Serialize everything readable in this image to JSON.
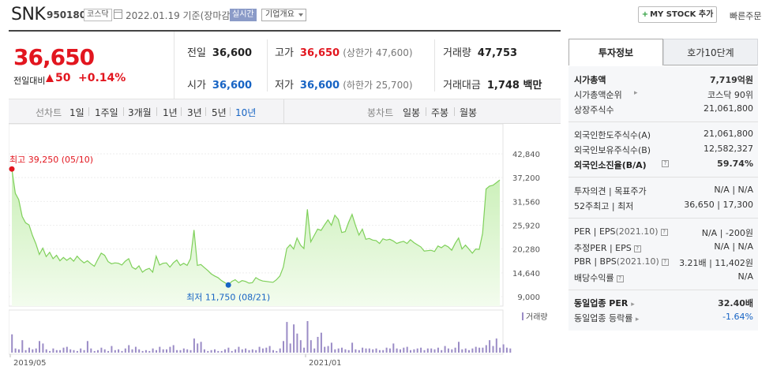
{
  "header": {
    "name": "SNK",
    "code": "950180",
    "market": "코스닥",
    "date": "2022.01.19  기준(장마감)",
    "realtime": "실시간",
    "company_select": "기업개요",
    "mystock_label": "MY STOCK 추가",
    "quick_order": "빠른주문"
  },
  "price": {
    "current": "36,650",
    "change_label": "전일대비",
    "change_amount": "50",
    "change_pct": "+0.14%",
    "colors": {
      "up": "#e2161f",
      "down": "#1764c4"
    }
  },
  "quotes": {
    "prev_label": "전일",
    "prev": "36,600",
    "high_label": "고가",
    "high": "36,650",
    "upper_limit": "(상한가 47,600)",
    "volume_label": "거래량",
    "volume": "47,753",
    "open_label": "시가",
    "open": "36,600",
    "low_label": "저가",
    "low": "36,600",
    "lower_limit": "(하한가 25,700)",
    "amount_label": "거래대금",
    "amount": "1,748 백만"
  },
  "period_bar": {
    "line_label": "선차트",
    "line_periods": [
      "1일",
      "1주일",
      "3개월",
      "1년",
      "3년",
      "5년",
      "10년"
    ],
    "selected_period": "10년",
    "candle_label": "봉차트",
    "candle_periods": [
      "일봉",
      "주봉",
      "월봉"
    ]
  },
  "chart_data": {
    "type": "area",
    "price_axis": [
      42840,
      37200,
      31560,
      25920,
      20280,
      14640,
      9000
    ],
    "price_axis_labels": [
      "42,840",
      "37,200",
      "31,560",
      "25,920",
      "20,280",
      "14,640",
      "9,000"
    ],
    "ylim": [
      9000,
      42840
    ],
    "x_labels": [
      "2019/05",
      "2021/01"
    ],
    "max_label": "최고 39,250 (05/10)",
    "min_label": "최저 11,750 (08/21)",
    "max_value": 39250,
    "min_value": 11750,
    "volume_legend": "거래량",
    "series": [
      {
        "values": [
          39250,
          33500,
          32000,
          28000,
          26500,
          26000,
          23500,
          21500,
          19000,
          20500,
          18500,
          19500,
          18000,
          18800,
          17500,
          18300,
          17600,
          18200,
          17400,
          18600,
          17700,
          17000,
          17500,
          16800,
          16200,
          17800,
          19300,
          18800,
          17300,
          16800,
          17000,
          16900,
          16500,
          17400,
          18000,
          16000,
          15500,
          16300,
          14800,
          15400,
          15700,
          14800,
          18600,
          16500,
          16900,
          17000,
          16000,
          17000,
          17700,
          16400,
          16900,
          16400,
          18000,
          24800,
          16400,
          16600,
          15900,
          15200,
          14400,
          13900,
          13500,
          12800,
          12300,
          11750,
          12600,
          13000,
          12300,
          12800,
          12600,
          12200,
          12300,
          13500,
          13000,
          12700,
          12600,
          12500,
          12400,
          13000,
          13900,
          16000,
          20400,
          21300,
          20300,
          22900,
          21200,
          20400,
          29700,
          22000,
          23500,
          25000,
          24700,
          26000,
          27200,
          25900,
          28300,
          27300,
          24200,
          24400,
          26600,
          28500,
          25900,
          23600,
          25000,
          22600,
          22800,
          22400,
          22300,
          21600,
          22700,
          22400,
          22600,
          22200,
          21600,
          21900,
          22100,
          21600,
          22500,
          21800,
          21300,
          20800,
          19800,
          19900,
          20000,
          19700,
          21000,
          20600,
          21200,
          20800,
          20000,
          21600,
          22900,
          20300,
          21200,
          20300,
          19300,
          20300,
          20200,
          24000,
          34500,
          35200,
          35400,
          36000,
          36650
        ]
      }
    ],
    "volume_series": [
      2.2,
      0.5,
      0.4,
      1.5,
      0.3,
      0.6,
      0.4,
      0.5,
      1.4,
      1.1,
      0.4,
      0.2,
      0.5,
      0.3,
      0.3,
      0.6,
      0.7,
      0.4,
      0.3,
      0.2,
      0.5,
      0.3,
      1.4,
      0.5,
      0.2,
      0.3,
      0.6,
      0.4,
      0.2,
      0.8,
      0.3,
      0.4,
      0.2,
      0.5,
      0.9,
      0.4,
      0.7,
      0.4,
      0.2,
      0.3,
      0.2,
      0.5,
      0.3,
      0.7,
      0.4,
      0.4,
      0.7,
      0.9,
      0.3,
      0.3,
      0.5,
      0.4,
      0.3,
      1.7,
      1.1,
      1.3,
      0.4,
      0.2,
      0.3,
      0.4,
      0.2,
      0.2,
      0.4,
      0.6,
      0.2,
      0.4,
      0.7,
      0.4,
      0.5,
      0.3,
      0.4,
      0.3,
      0.7,
      0.5,
      0.6,
      0.8,
      0.3,
      0.2,
      0.5,
      1.4,
      3.7,
      1.1,
      3.4,
      2.3,
      1.5,
      0.6,
      3.8,
      1.5,
      0.5,
      1.9,
      2.4,
      0.7,
      0.8,
      1.2,
      0.4,
      0.5,
      0.6,
      0.4,
      0.3,
      1.2,
      0.4,
      0.3,
      0.6,
      0.5,
      0.5,
      0.4,
      0.5,
      0.3,
      0.3,
      0.6,
      0.5,
      1.1,
      0.5,
      0.4,
      0.6,
      0.7,
      0.3,
      0.4,
      0.5,
      0.6,
      0.3,
      0.5,
      0.5,
      0.4,
      0.6,
      0.3,
      0.8,
      0.5,
      0.4,
      0.6,
      1.3,
      0.4,
      0.5,
      0.3,
      0.5,
      0.7,
      0.6,
      0.6,
      0.9,
      1.5,
      0.8,
      1.7,
      0.6,
      1.0,
      0.6,
      0.5
    ],
    "colors": {
      "line": "#7fd05a",
      "fill_top": "#c9efb6",
      "fill_bottom": "#f3fcee",
      "max_dot": "#e2161f",
      "min_dot": "#1764c4",
      "volume": "#9b8cc6"
    }
  },
  "side": {
    "tabs": [
      "투자정보",
      "호가10단계"
    ],
    "rows1": [
      {
        "k": "시가총액",
        "v": "7,719억원"
      },
      {
        "k": "시가총액순위",
        "v": "코스닥  90위"
      },
      {
        "k": "상장주식수",
        "v": "21,061,800"
      }
    ],
    "rows2": [
      {
        "k": "외국인한도주식수(A)",
        "v": "21,061,800"
      },
      {
        "k": "외국인보유주식수(B)",
        "v": "12,582,327"
      },
      {
        "k": "외국인소진율(B/A)",
        "v": "59.74%"
      }
    ],
    "opinion_label": "투자의견",
    "target_label": "목표주가",
    "opinion_value": "N/A",
    "target_value": "N/A",
    "w52_label": "52주최고",
    "w52_low_label": "최저",
    "w52_high": "36,650",
    "w52_low": "17,300",
    "per_label": "PER",
    "eps_label": "EPS",
    "eps_period": "(2021.10)",
    "per_value": "N/A",
    "eps_value": "-200원",
    "est_per_label": "추정PER",
    "est_eps_label": "EPS",
    "est_per_value": "N/A",
    "est_eps_value": "N/A",
    "pbr_label": "PBR",
    "bps_label": "BPS",
    "bps_period": "(2021.10)",
    "pbr_value": "3.21배",
    "bps_value": "11,402원",
    "div_label": "배당수익률",
    "div_value": "N/A",
    "sector_per_label": "동일업종 PER",
    "sector_per_value": "32.40배",
    "sector_chg_label": "동일업종 등락률",
    "sector_chg_value": "-1.64%"
  }
}
